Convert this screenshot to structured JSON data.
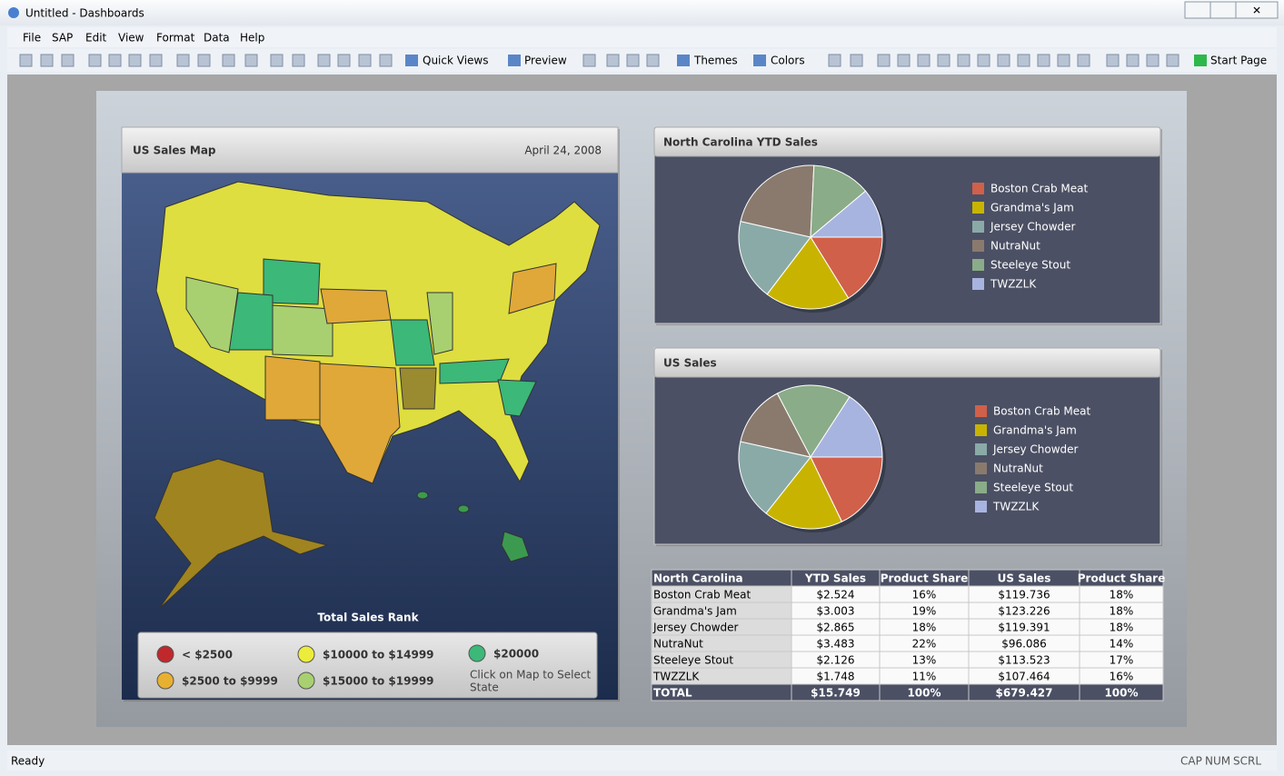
{
  "window": {
    "title": "Untitled - Dashboards"
  },
  "menu": [
    "File",
    "SAP",
    "Edit",
    "View",
    "Format",
    "Data",
    "Help"
  ],
  "toolbar": [
    "Quick Views",
    "Preview",
    "Themes",
    "Colors",
    "Start Page"
  ],
  "map_panel": {
    "title": "US Sales Map",
    "date": "April 24, 2008",
    "legend_title": "Total Sales Rank",
    "legend": [
      {
        "label": "< $2500",
        "color": "#c0282c"
      },
      {
        "label": "$2500 to $9999",
        "color": "#e8b030"
      },
      {
        "label": "$10000 to $14999",
        "color": "#ecec3c"
      },
      {
        "label": "$15000 to $19999",
        "color": "#a8d070"
      },
      {
        "label": "$20000",
        "color": "#3cb878"
      }
    ],
    "hint": "Click on Map to Select State"
  },
  "chart_data": [
    {
      "type": "pie",
      "title": "North Carolina YTD Sales",
      "categories": [
        "Boston Crab Meat",
        "Grandma's Jam",
        "Jersey Chowder",
        "NutraNut",
        "Steeleye Stout",
        "TWZZLK"
      ],
      "values": [
        16,
        19,
        18,
        22,
        13,
        11
      ],
      "colors": [
        "#d0604a",
        "#c8b400",
        "#8aaaa8",
        "#8a7a6e",
        "#8aac88",
        "#a8b4e0"
      ]
    },
    {
      "type": "pie",
      "title": "US Sales",
      "categories": [
        "Boston Crab Meat",
        "Grandma's Jam",
        "Jersey Chowder",
        "NutraNut",
        "Steeleye Stout",
        "TWZZLK"
      ],
      "values": [
        18,
        18,
        18,
        14,
        17,
        16
      ],
      "colors": [
        "#d0604a",
        "#c8b400",
        "#8aaaa8",
        "#8a7a6e",
        "#8aac88",
        "#a8b4e0"
      ]
    }
  ],
  "table": {
    "headers": [
      "North Carolina",
      "YTD Sales",
      "Product Share",
      "US Sales",
      "Product Share"
    ],
    "rows": [
      [
        "Boston Crab Meat",
        "$2.524",
        "16%",
        "$119.736",
        "18%"
      ],
      [
        "Grandma's Jam",
        "$3.003",
        "19%",
        "$123.226",
        "18%"
      ],
      [
        "Jersey Chowder",
        "$2.865",
        "18%",
        "$119.391",
        "18%"
      ],
      [
        "NutraNut",
        "$3.483",
        "22%",
        "$96.086",
        "14%"
      ],
      [
        "Steeleye Stout",
        "$2.126",
        "13%",
        "$113.523",
        "17%"
      ],
      [
        "TWZZLK",
        "$1.748",
        "11%",
        "$107.464",
        "16%"
      ]
    ],
    "total": [
      "TOTAL",
      "$15.749",
      "100%",
      "$679.427",
      "100%"
    ]
  },
  "status": {
    "left": "Ready",
    "indicators": [
      "CAP",
      "NUM",
      "SCRL"
    ]
  }
}
